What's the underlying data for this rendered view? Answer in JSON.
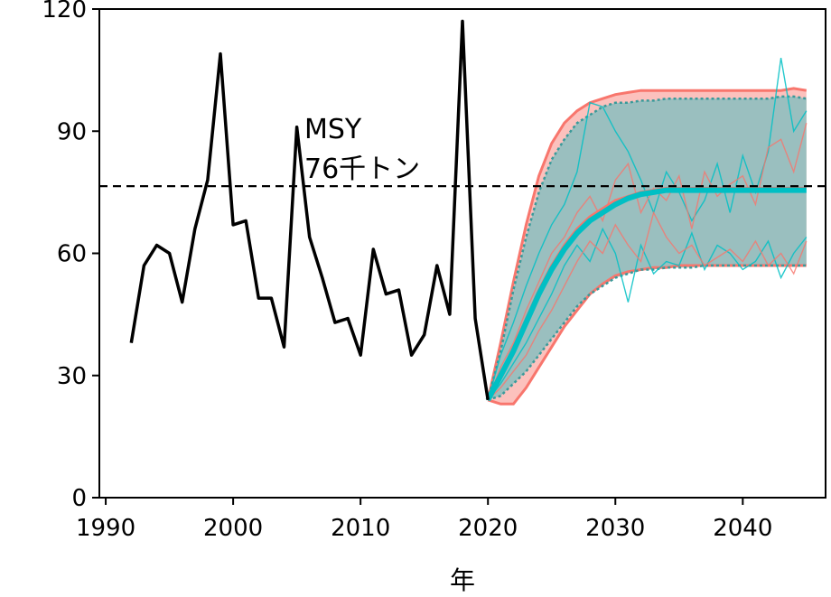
{
  "chart_data": {
    "type": "line",
    "xlabel": "年",
    "ylabel": "",
    "xlim": [
      1989.5,
      2046.5
    ],
    "ylim": [
      0,
      120
    ],
    "x_ticks": [
      1990,
      2000,
      2010,
      2020,
      2030,
      2040
    ],
    "y_ticks": [
      0,
      30,
      60,
      90,
      120
    ],
    "grid": false,
    "legend": "none",
    "reference_line": {
      "value": 76.5,
      "label_line1": "MSY",
      "label_line2": "76千トン",
      "style": "dashed",
      "color": "#000000"
    },
    "colors": {
      "observed": "#000000",
      "projection_a": "#f8766d",
      "projection_b": "#00bfc4",
      "band_fill": "#8fbfbf"
    },
    "series": [
      {
        "name": "",
        "role": "observed",
        "x": [
          1992,
          1993,
          1994,
          1995,
          1996,
          1997,
          1998,
          1999,
          2000,
          2001,
          2002,
          2003,
          2004,
          2005,
          2006,
          2007,
          2008,
          2009,
          2010,
          2011,
          2012,
          2013,
          2014,
          2015,
          2016,
          2017,
          2018,
          2019,
          2020
        ],
        "values": [
          38,
          57,
          62,
          60,
          48,
          66,
          78,
          109,
          67,
          68,
          49,
          49,
          37,
          91,
          64,
          54,
          43,
          44,
          35,
          61,
          50,
          51,
          35,
          40,
          57,
          45,
          117,
          44,
          24
        ]
      },
      {
        "name": "",
        "role": "projection-median-a",
        "x": [
          2020,
          2021,
          2022,
          2023,
          2024,
          2025,
          2026,
          2027,
          2028,
          2029,
          2030,
          2031,
          2032,
          2033,
          2034,
          2035,
          2036,
          2037,
          2038,
          2039,
          2040,
          2041,
          2042,
          2043,
          2044,
          2045
        ],
        "values": [
          24,
          30,
          37,
          44,
          51,
          57,
          62,
          66,
          69,
          71,
          73,
          74,
          75,
          75.5,
          76,
          76,
          76,
          76,
          76,
          76,
          76,
          76,
          76,
          76,
          76,
          76
        ]
      },
      {
        "name": "",
        "role": "projection-median-b",
        "x": [
          2020,
          2021,
          2022,
          2023,
          2024,
          2025,
          2026,
          2027,
          2028,
          2029,
          2030,
          2031,
          2032,
          2033,
          2034,
          2035,
          2036,
          2037,
          2038,
          2039,
          2040,
          2041,
          2042,
          2043,
          2044,
          2045
        ],
        "values": [
          24,
          30,
          36,
          43,
          50,
          56,
          61,
          65,
          68,
          70,
          72,
          73.5,
          74.5,
          75,
          75.5,
          75.5,
          75.5,
          75.5,
          75.5,
          75.5,
          75.5,
          75.5,
          75.5,
          75.5,
          75.5,
          75.5
        ]
      },
      {
        "name": "",
        "role": "projection-upper-a",
        "x": [
          2020,
          2021,
          2022,
          2023,
          2024,
          2025,
          2026,
          2027,
          2028,
          2029,
          2030,
          2031,
          2032,
          2033,
          2034,
          2035,
          2036,
          2037,
          2038,
          2039,
          2040,
          2041,
          2042,
          2043,
          2044,
          2045
        ],
        "values": [
          24,
          38,
          53,
          67,
          79,
          87,
          92,
          95,
          97,
          98,
          99,
          99.5,
          100,
          100,
          100,
          100,
          100,
          100,
          100,
          100,
          100,
          100,
          100,
          100,
          100.5,
          100
        ]
      },
      {
        "name": "",
        "role": "projection-lower-a",
        "x": [
          2020,
          2021,
          2022,
          2023,
          2024,
          2025,
          2026,
          2027,
          2028,
          2029,
          2030,
          2031,
          2032,
          2033,
          2034,
          2035,
          2036,
          2037,
          2038,
          2039,
          2040,
          2041,
          2042,
          2043,
          2044,
          2045
        ],
        "values": [
          24,
          23,
          23,
          27,
          32,
          37,
          42,
          46,
          50,
          52.5,
          54.5,
          55.5,
          56,
          56.5,
          56.5,
          57,
          57,
          57,
          57,
          57,
          57,
          57,
          57,
          57,
          57,
          57
        ]
      },
      {
        "name": "",
        "role": "projection-upper-b",
        "x": [
          2020,
          2021,
          2022,
          2023,
          2024,
          2025,
          2026,
          2027,
          2028,
          2029,
          2030,
          2031,
          2032,
          2033,
          2034,
          2035,
          2036,
          2037,
          2038,
          2039,
          2040,
          2041,
          2042,
          2043,
          2044,
          2045
        ],
        "values": [
          24,
          36,
          51,
          64,
          75,
          83,
          88,
          92,
          94,
          96,
          97,
          97,
          97.5,
          97.5,
          98,
          98,
          98,
          98,
          98,
          98,
          98,
          98,
          98,
          98.5,
          98.5,
          98
        ]
      },
      {
        "name": "",
        "role": "projection-lower-b",
        "x": [
          2020,
          2021,
          2022,
          2023,
          2024,
          2025,
          2026,
          2027,
          2028,
          2029,
          2030,
          2031,
          2032,
          2033,
          2034,
          2035,
          2036,
          2037,
          2038,
          2039,
          2040,
          2041,
          2042,
          2043,
          2044,
          2045
        ],
        "values": [
          24,
          25,
          28,
          31,
          35,
          39,
          43,
          47,
          50,
          52,
          54,
          55,
          56,
          56,
          56.5,
          56.5,
          56.5,
          57,
          57,
          57,
          57,
          57,
          57,
          57,
          57,
          57
        ]
      },
      {
        "name": "",
        "role": "trajectory-b",
        "x": [
          2020,
          2021,
          2022,
          2023,
          2024,
          2025,
          2026,
          2027,
          2028,
          2029,
          2030,
          2031,
          2032,
          2033,
          2034,
          2035,
          2036,
          2037,
          2038,
          2039,
          2040,
          2041,
          2042,
          2043,
          2044,
          2045
        ],
        "values": [
          24,
          35,
          43,
          52,
          60,
          67,
          72,
          80,
          97,
          96,
          90,
          85,
          78,
          70,
          80,
          75,
          68,
          73,
          82,
          70,
          84,
          75,
          85,
          108,
          90,
          95
        ]
      },
      {
        "name": "",
        "role": "trajectory-b",
        "x": [
          2020,
          2021,
          2022,
          2023,
          2024,
          2025,
          2026,
          2027,
          2028,
          2029,
          2030,
          2031,
          2032,
          2033,
          2034,
          2035,
          2036,
          2037,
          2038,
          2039,
          2040,
          2041,
          2042,
          2043,
          2044,
          2045
        ],
        "values": [
          24,
          28,
          33,
          38,
          44,
          50,
          57,
          62,
          58,
          66,
          60,
          48,
          62,
          55,
          58,
          57,
          65,
          56,
          62,
          60,
          56,
          58,
          63,
          54,
          60,
          64
        ]
      },
      {
        "name": "",
        "role": "trajectory-a",
        "x": [
          2020,
          2021,
          2022,
          2023,
          2024,
          2025,
          2026,
          2027,
          2028,
          2029,
          2030,
          2031,
          2032,
          2033,
          2034,
          2035,
          2036,
          2037,
          2038,
          2039,
          2040,
          2041,
          2042,
          2043,
          2044,
          2045
        ],
        "values": [
          24,
          32,
          38,
          46,
          53,
          60,
          64,
          70,
          74,
          68,
          78,
          82,
          70,
          76,
          73,
          79,
          66,
          80,
          74,
          77,
          79,
          72,
          86,
          88,
          80,
          92
        ]
      },
      {
        "name": "",
        "role": "trajectory-a",
        "x": [
          2020,
          2021,
          2022,
          2023,
          2024,
          2025,
          2026,
          2027,
          2028,
          2029,
          2030,
          2031,
          2032,
          2033,
          2034,
          2035,
          2036,
          2037,
          2038,
          2039,
          2040,
          2041,
          2042,
          2043,
          2044,
          2045
        ],
        "values": [
          24,
          27,
          31,
          35,
          41,
          46,
          52,
          58,
          63,
          60,
          67,
          62,
          58,
          70,
          64,
          60,
          62,
          57,
          59,
          61,
          58,
          63,
          57,
          60,
          55,
          63
        ]
      }
    ]
  }
}
